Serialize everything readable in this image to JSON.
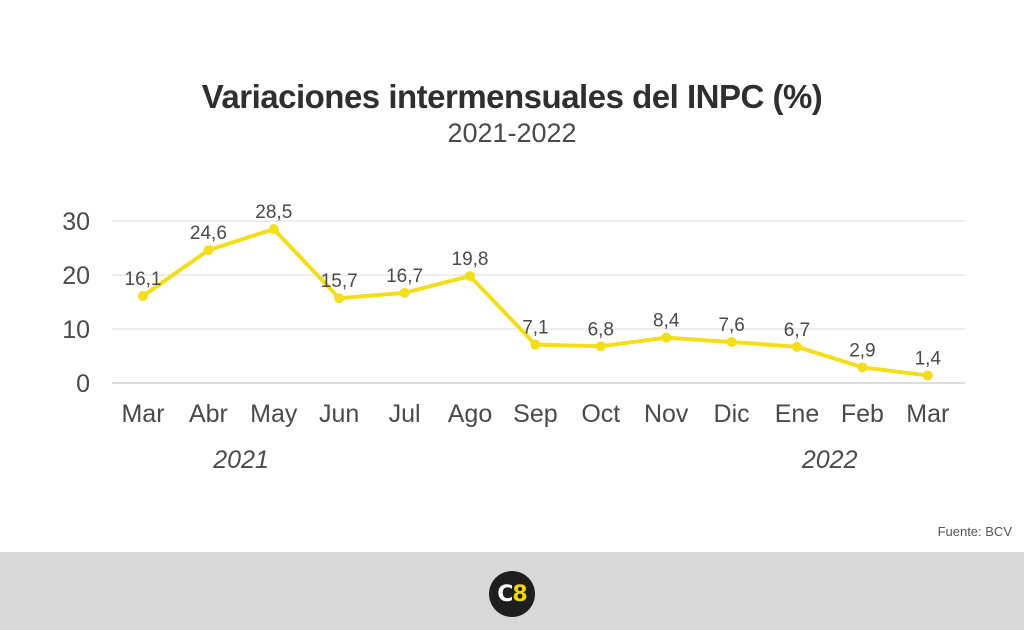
{
  "title": "Variaciones intermensuales del INPC (%)",
  "subtitle": "2021-2022",
  "source": "Fuente: BCV",
  "logo": {
    "letter": "C",
    "number": "8"
  },
  "colors": {
    "line": "#f2de1c",
    "grid": "#dcdcdc",
    "text": "#4a4a4a",
    "footer": "#d8d8d8"
  },
  "chart_data": {
    "type": "line",
    "categories": [
      "Mar",
      "Abr",
      "May",
      "Jun",
      "Jul",
      "Ago",
      "Sep",
      "Oct",
      "Nov",
      "Dic",
      "Ene",
      "Feb",
      "Mar"
    ],
    "values": [
      16.1,
      24.6,
      28.5,
      15.7,
      16.7,
      19.8,
      7.1,
      6.8,
      8.4,
      7.6,
      6.7,
      2.9,
      1.4
    ],
    "data_labels": [
      "16,1",
      "24,6",
      "28,5",
      "15,7",
      "16,7",
      "19,8",
      "7,1",
      "6,8",
      "8,4",
      "7,6",
      "6,7",
      "2,9",
      "1,4"
    ],
    "year_labels": [
      {
        "text": "2021",
        "category_index": 1.5
      },
      {
        "text": "2022",
        "category_index": 10.5
      }
    ],
    "y_ticks": [
      0,
      10,
      20,
      30
    ],
    "ylim": [
      0,
      30
    ],
    "grid": true,
    "legend": "none"
  }
}
